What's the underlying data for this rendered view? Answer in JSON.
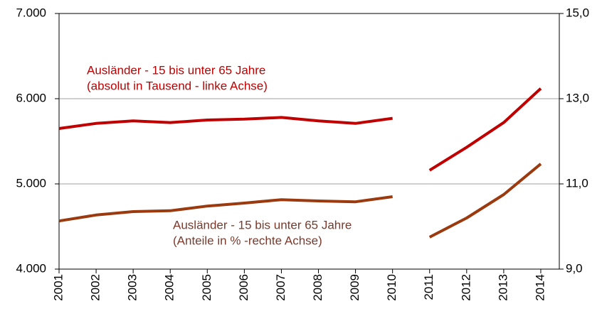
{
  "chart_data": {
    "type": "line",
    "categories": [
      "2001",
      "2002",
      "2003",
      "2004",
      "2005",
      "2006",
      "2007",
      "2008",
      "2009",
      "2010",
      "2011",
      "2012",
      "2013",
      "2014"
    ],
    "series": [
      {
        "color": "#c00000",
        "values": [
          5650,
          5710,
          5740,
          5720,
          5750,
          5760,
          5780,
          5740,
          5710,
          5770,
          null,
          null,
          null,
          null
        ]
      },
      {
        "color": "#c00000",
        "values": [
          null,
          null,
          null,
          null,
          null,
          null,
          null,
          null,
          null,
          null,
          5160,
          5430,
          5720,
          6120
        ]
      },
      {
        "color": "#9b3a0f",
        "axis": "y2",
        "values": [
          10.13,
          10.27,
          10.35,
          10.37,
          10.48,
          10.55,
          10.63,
          10.6,
          10.58,
          10.7,
          null,
          null,
          null,
          null
        ]
      },
      {
        "color": "#9b3a0f",
        "axis": "y2",
        "values": [
          null,
          null,
          null,
          null,
          null,
          null,
          null,
          null,
          null,
          null,
          9.75,
          10.2,
          10.75,
          11.47
        ]
      }
    ],
    "annotations": [
      {
        "lines": [
          "Ausländer - 15 bis unter 65 Jahre",
          "(absolut in Tausend - linke Achse)"
        ],
        "color": "#c00000"
      },
      {
        "lines": [
          "Ausländer - 15 bis unter 65 Jahre",
          "(Anteile in % -rechte Achse)"
        ],
        "color": "#7b3a2c"
      }
    ],
    "ylim": [
      4000,
      7000
    ],
    "yticks": [
      {
        "value": 4000,
        "label": "4.000"
      },
      {
        "value": 5000,
        "label": "5.000"
      },
      {
        "value": 6000,
        "label": "6.000"
      },
      {
        "value": 7000,
        "label": "7.000"
      }
    ],
    "y2lim": [
      9,
      15
    ],
    "y2ticks": [
      {
        "value": 9,
        "label": "9,0"
      },
      {
        "value": 11,
        "label": "11,0"
      },
      {
        "value": 13,
        "label": "13,0"
      },
      {
        "value": 15,
        "label": "15,0"
      }
    ],
    "grid": true
  }
}
